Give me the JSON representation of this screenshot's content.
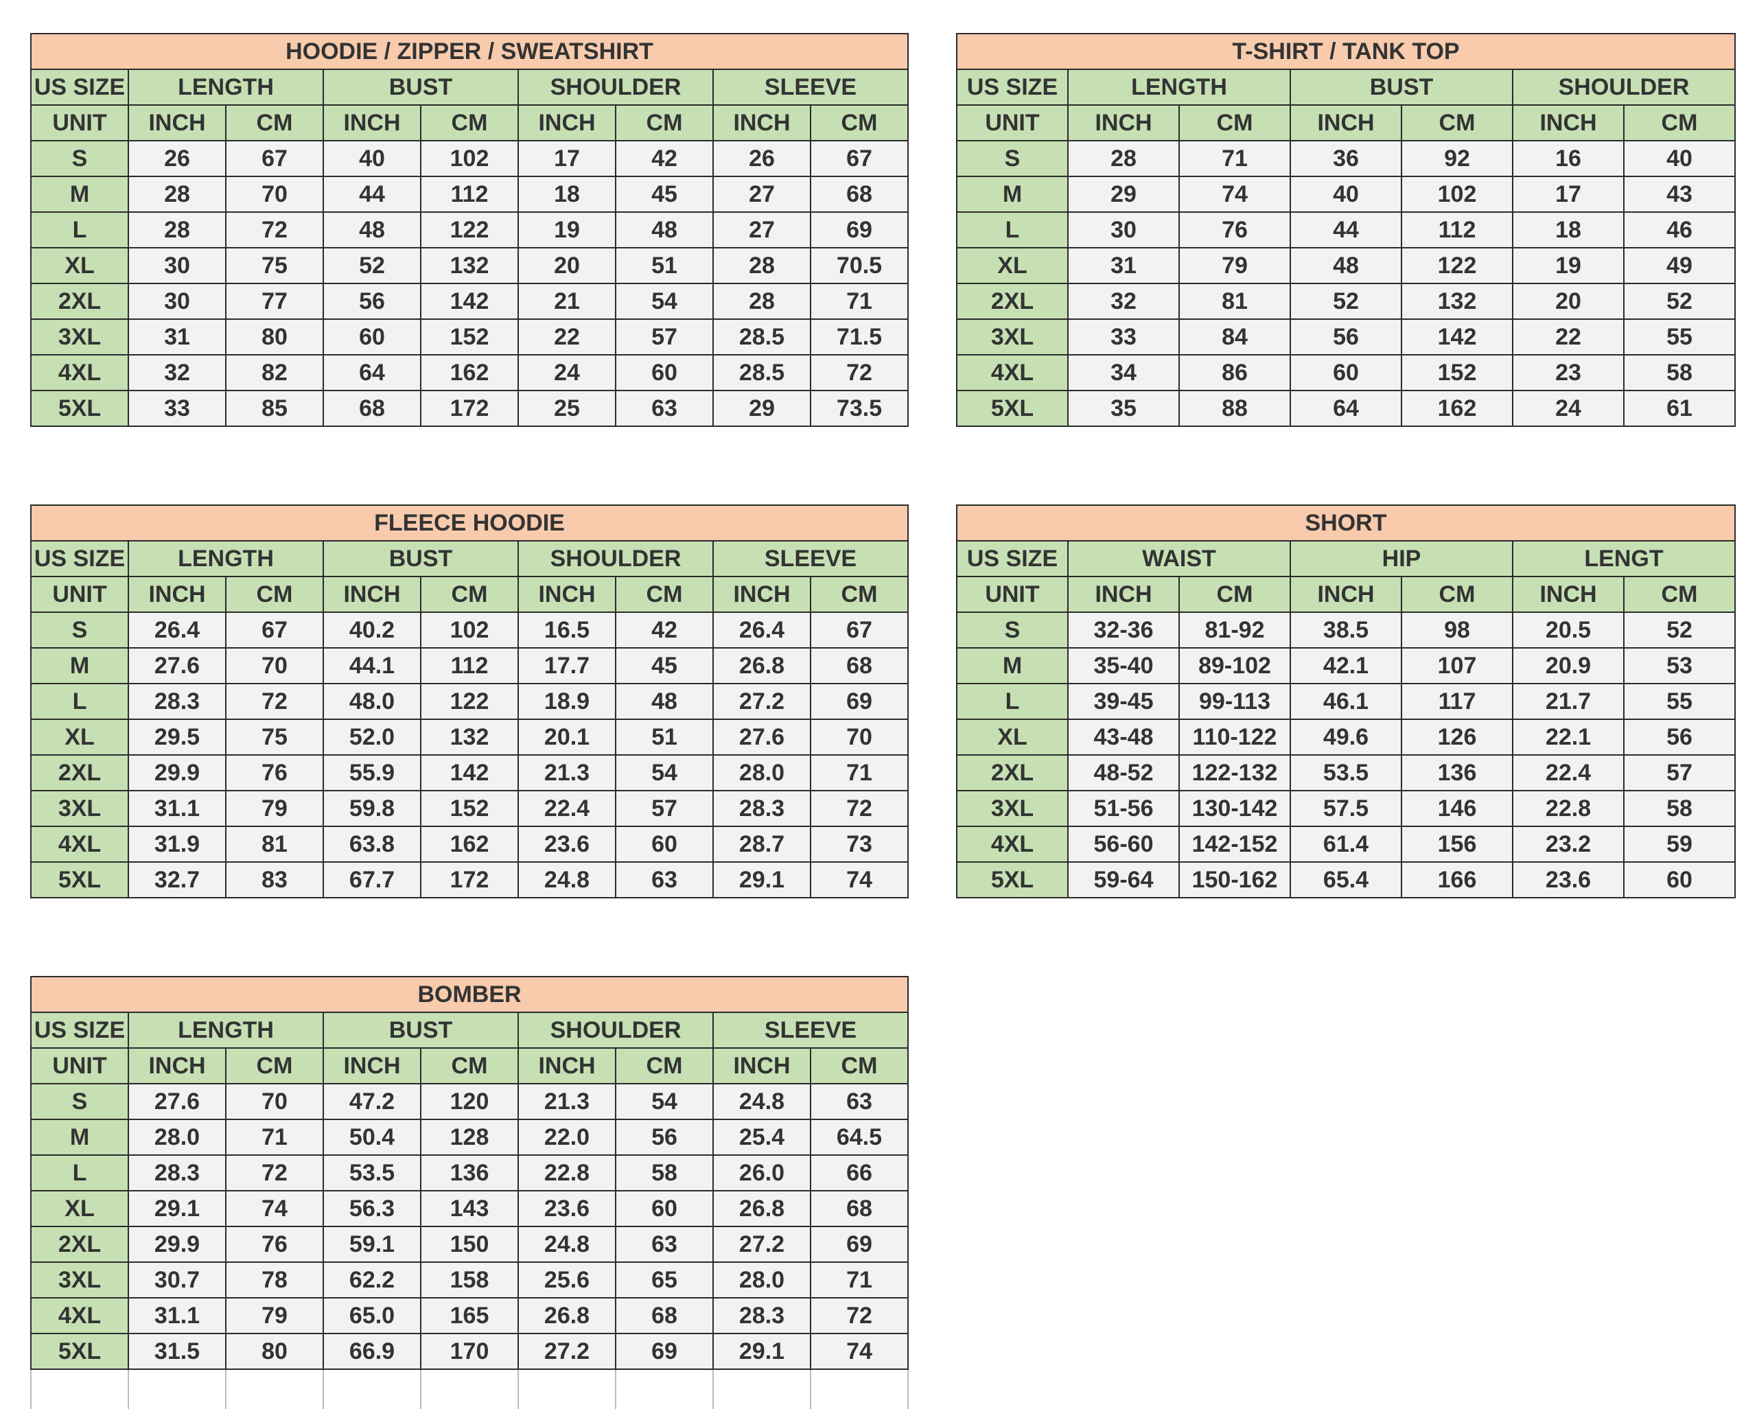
{
  "tables": [
    {
      "title": "HOODIE / ZIPPER / SWEATSHIRT",
      "header": [
        "US SIZE",
        "LENGTH",
        "BUST",
        "SHOULDER",
        "SLEEVE"
      ],
      "units": [
        "UNIT",
        "INCH",
        "CM",
        "INCH",
        "CM",
        "INCH",
        "CM",
        "INCH",
        "CM"
      ],
      "rows": [
        [
          "S",
          "26",
          "67",
          "40",
          "102",
          "17",
          "42",
          "26",
          "67"
        ],
        [
          "M",
          "28",
          "70",
          "44",
          "112",
          "18",
          "45",
          "27",
          "68"
        ],
        [
          "L",
          "28",
          "72",
          "48",
          "122",
          "19",
          "48",
          "27",
          "69"
        ],
        [
          "XL",
          "30",
          "75",
          "52",
          "132",
          "20",
          "51",
          "28",
          "70.5"
        ],
        [
          "2XL",
          "30",
          "77",
          "56",
          "142",
          "21",
          "54",
          "28",
          "71"
        ],
        [
          "3XL",
          "31",
          "80",
          "60",
          "152",
          "22",
          "57",
          "28.5",
          "71.5"
        ],
        [
          "4XL",
          "32",
          "82",
          "64",
          "162",
          "24",
          "60",
          "28.5",
          "72"
        ],
        [
          "5XL",
          "33",
          "85",
          "68",
          "172",
          "25",
          "63",
          "29",
          "73.5"
        ]
      ]
    },
    {
      "title": "T-SHIRT / TANK TOP",
      "header": [
        "US SIZE",
        "LENGTH",
        "BUST",
        "SHOULDER"
      ],
      "units": [
        "UNIT",
        "INCH",
        "CM",
        "INCH",
        "CM",
        "INCH",
        "CM"
      ],
      "rows": [
        [
          "S",
          "28",
          "71",
          "36",
          "92",
          "16",
          "40"
        ],
        [
          "M",
          "29",
          "74",
          "40",
          "102",
          "17",
          "43"
        ],
        [
          "L",
          "30",
          "76",
          "44",
          "112",
          "18",
          "46"
        ],
        [
          "XL",
          "31",
          "79",
          "48",
          "122",
          "19",
          "49"
        ],
        [
          "2XL",
          "32",
          "81",
          "52",
          "132",
          "20",
          "52"
        ],
        [
          "3XL",
          "33",
          "84",
          "56",
          "142",
          "22",
          "55"
        ],
        [
          "4XL",
          "34",
          "86",
          "60",
          "152",
          "23",
          "58"
        ],
        [
          "5XL",
          "35",
          "88",
          "64",
          "162",
          "24",
          "61"
        ]
      ]
    },
    {
      "title": "FLEECE HOODIE",
      "header": [
        "US SIZE",
        "LENGTH",
        "BUST",
        "SHOULDER",
        "SLEEVE"
      ],
      "units": [
        "UNIT",
        "INCH",
        "CM",
        "INCH",
        "CM",
        "INCH",
        "CM",
        "INCH",
        "CM"
      ],
      "rows": [
        [
          "S",
          "26.4",
          "67",
          "40.2",
          "102",
          "16.5",
          "42",
          "26.4",
          "67"
        ],
        [
          "M",
          "27.6",
          "70",
          "44.1",
          "112",
          "17.7",
          "45",
          "26.8",
          "68"
        ],
        [
          "L",
          "28.3",
          "72",
          "48.0",
          "122",
          "18.9",
          "48",
          "27.2",
          "69"
        ],
        [
          "XL",
          "29.5",
          "75",
          "52.0",
          "132",
          "20.1",
          "51",
          "27.6",
          "70"
        ],
        [
          "2XL",
          "29.9",
          "76",
          "55.9",
          "142",
          "21.3",
          "54",
          "28.0",
          "71"
        ],
        [
          "3XL",
          "31.1",
          "79",
          "59.8",
          "152",
          "22.4",
          "57",
          "28.3",
          "72"
        ],
        [
          "4XL",
          "31.9",
          "81",
          "63.8",
          "162",
          "23.6",
          "60",
          "28.7",
          "73"
        ],
        [
          "5XL",
          "32.7",
          "83",
          "67.7",
          "172",
          "24.8",
          "63",
          "29.1",
          "74"
        ]
      ]
    },
    {
      "title": "SHORT",
      "header": [
        "US SIZE",
        "WAIST",
        "HIP",
        "LENGT"
      ],
      "units": [
        "UNIT",
        "INCH",
        "CM",
        "INCH",
        "CM",
        "INCH",
        "CM"
      ],
      "rows": [
        [
          "S",
          "32-36",
          "81-92",
          "38.5",
          "98",
          "20.5",
          "52"
        ],
        [
          "M",
          "35-40",
          "89-102",
          "42.1",
          "107",
          "20.9",
          "53"
        ],
        [
          "L",
          "39-45",
          "99-113",
          "46.1",
          "117",
          "21.7",
          "55"
        ],
        [
          "XL",
          "43-48",
          "110-122",
          "49.6",
          "126",
          "22.1",
          "56"
        ],
        [
          "2XL",
          "48-52",
          "122-132",
          "53.5",
          "136",
          "22.4",
          "57"
        ],
        [
          "3XL",
          "51-56",
          "130-142",
          "57.5",
          "146",
          "22.8",
          "58"
        ],
        [
          "4XL",
          "56-60",
          "142-152",
          "61.4",
          "156",
          "23.2",
          "59"
        ],
        [
          "5XL",
          "59-64",
          "150-162",
          "65.4",
          "166",
          "23.6",
          "60"
        ]
      ]
    },
    {
      "title": "BOMBER",
      "header": [
        "US SIZE",
        "LENGTH",
        "BUST",
        "SHOULDER",
        "SLEEVE"
      ],
      "units": [
        "UNIT",
        "INCH",
        "CM",
        "INCH",
        "CM",
        "INCH",
        "CM",
        "INCH",
        "CM"
      ],
      "rows": [
        [
          "S",
          "27.6",
          "70",
          "47.2",
          "120",
          "21.3",
          "54",
          "24.8",
          "63"
        ],
        [
          "M",
          "28.0",
          "71",
          "50.4",
          "128",
          "22.0",
          "56",
          "25.4",
          "64.5"
        ],
        [
          "L",
          "28.3",
          "72",
          "53.5",
          "136",
          "22.8",
          "58",
          "26.0",
          "66"
        ],
        [
          "XL",
          "29.1",
          "74",
          "56.3",
          "143",
          "23.6",
          "60",
          "26.8",
          "68"
        ],
        [
          "2XL",
          "29.9",
          "76",
          "59.1",
          "150",
          "24.8",
          "63",
          "27.2",
          "69"
        ],
        [
          "3XL",
          "30.7",
          "78",
          "62.2",
          "158",
          "25.6",
          "65",
          "28.0",
          "71"
        ],
        [
          "4XL",
          "31.1",
          "79",
          "65.0",
          "165",
          "26.8",
          "68",
          "28.3",
          "72"
        ],
        [
          "5XL",
          "31.5",
          "80",
          "66.9",
          "170",
          "27.2",
          "69",
          "29.1",
          "74"
        ]
      ]
    }
  ]
}
